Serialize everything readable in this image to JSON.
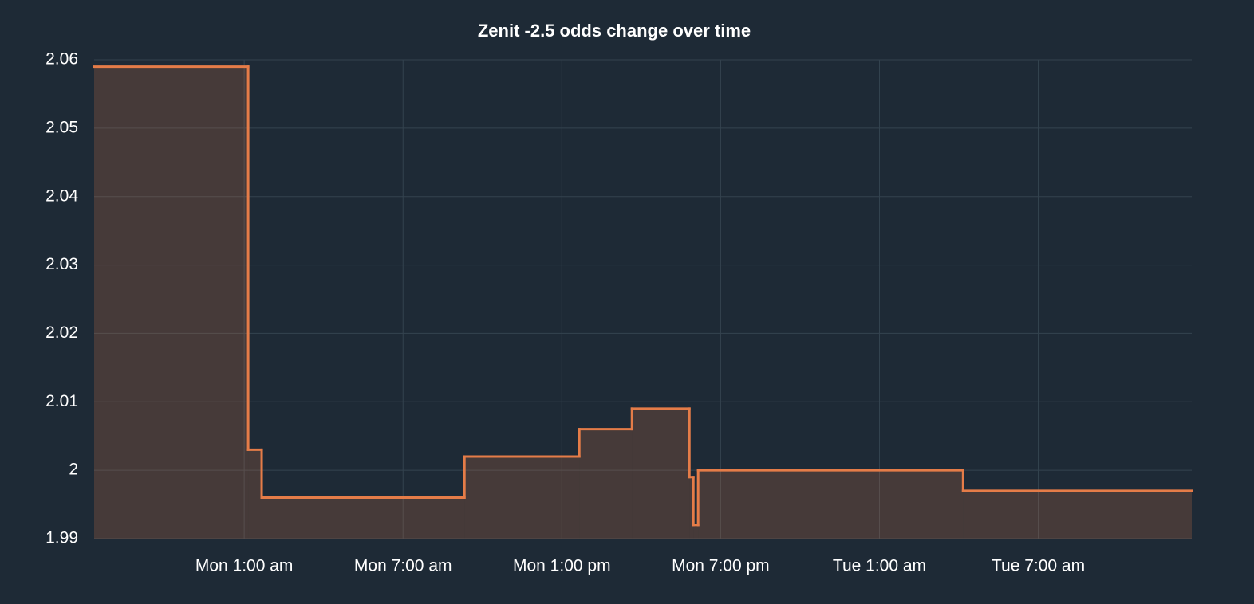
{
  "chart_data": {
    "type": "step-area",
    "title": "Zenit  -2.5 odds change over time",
    "x": [
      -4.67,
      1.15,
      1.66,
      9.32,
      13.66,
      15.65,
      17.82,
      17.97,
      18.15,
      28.16,
      36.8
    ],
    "values": [
      2.059,
      2.003,
      1.996,
      2.002,
      2.006,
      2.009,
      1.999,
      1.992,
      2.0,
      1.997,
      1.997
    ],
    "color": "#e57c48",
    "xlim": [
      -4.67,
      36.8
    ],
    "xticks": [
      {
        "value": 1,
        "label": "Mon 1:00 am"
      },
      {
        "value": 7,
        "label": "Mon 7:00 am"
      },
      {
        "value": 13,
        "label": "Mon 1:00 pm"
      },
      {
        "value": 19,
        "label": "Mon 7:00 pm"
      },
      {
        "value": 25,
        "label": "Tue 1:00 am"
      },
      {
        "value": 31,
        "label": "Tue 7:00 am"
      }
    ],
    "ylim": [
      1.99,
      2.06
    ],
    "yticks": [
      1.99,
      2,
      2.01,
      2.02,
      2.03,
      2.04,
      2.05,
      2.06
    ],
    "grid": true
  }
}
